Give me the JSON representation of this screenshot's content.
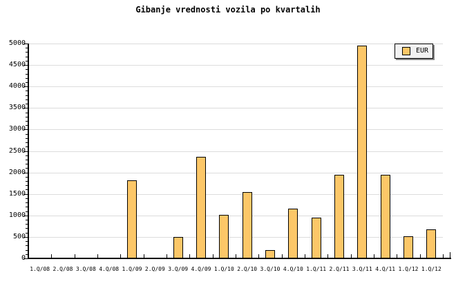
{
  "chart_data": {
    "type": "bar",
    "title": "Gibanje vrednosti vozila po kvartalih",
    "categories": [
      "1.Q/08",
      "2.Q/08",
      "3.Q/08",
      "4.Q/08",
      "1.Q/09",
      "2.Q/09",
      "3.Q/09",
      "4.Q/09",
      "1.Q/10",
      "2.Q/10",
      "3.Q/10",
      "4.Q/10",
      "1.Q/11",
      "2.Q/11",
      "3.Q/11",
      "4.Q/11",
      "1.Q/12",
      "1.Q/12"
    ],
    "series": [
      {
        "name": "EUR",
        "values": [
          0,
          0,
          0,
          0,
          1820,
          0,
          500,
          2360,
          1020,
          1550,
          200,
          1160,
          950,
          1950,
          4950,
          1950,
          520,
          680
        ]
      }
    ],
    "ylabel": "",
    "xlabel": "",
    "ylim": [
      0,
      5000
    ],
    "ytick_major": 500,
    "ytick_minor": 100,
    "grid": "horizontal-major",
    "legend": {
      "label": "EUR",
      "position": "top-right"
    },
    "colors": {
      "bar_fill": "#FCC768",
      "bar_border": "#000000",
      "grid": "#DCDCDC",
      "axis": "#000000",
      "background": "#FFFFFF",
      "legend_bg": "#F2F2F2",
      "legend_shadow": "#888888",
      "text": "#000000"
    }
  }
}
